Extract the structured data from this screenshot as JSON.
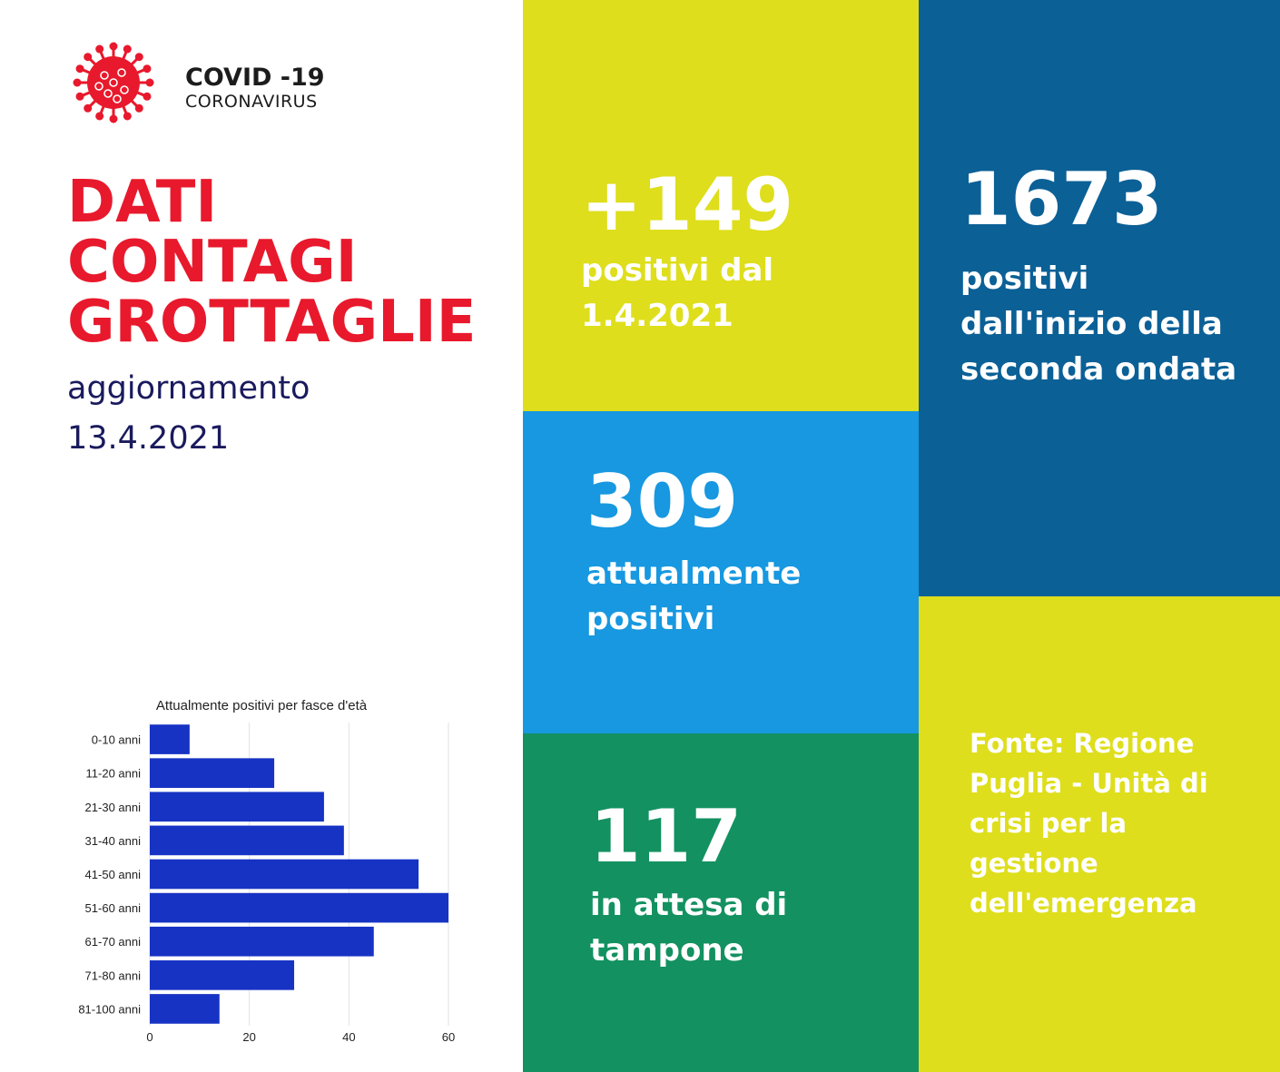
{
  "logo": {
    "title": "COVID -19",
    "subtitle": "CORONAVIRUS",
    "icon": "virus-icon"
  },
  "heading": {
    "line1": "DATI",
    "line2": "CONTAGI",
    "line3": "GROTTAGLIE"
  },
  "update": {
    "label": "aggiornamento",
    "date": "13.4.2021"
  },
  "colors": {
    "red": "#e8192c",
    "yellow": "#dede1c",
    "lightblue": "#1798e0",
    "darkblue": "#0b6096",
    "green": "#139161",
    "bar": "#1733c4"
  },
  "tiles": {
    "new_positives": {
      "value": "+149",
      "line1": "positivi dal",
      "line2": "1.4.2021"
    },
    "total_positives": {
      "value": "1673",
      "line1": "positivi",
      "line2": "dall'inizio della",
      "line3": "seconda ondata"
    },
    "current_positives": {
      "value": "309",
      "line1": "attualmente",
      "line2": "positivi"
    },
    "awaiting_swab": {
      "value": "117",
      "line1": "in attesa di",
      "line2": "tampone"
    },
    "source": {
      "line1": "Fonte: Regione",
      "line2": "Puglia - Unità di",
      "line3": "crisi per la",
      "line4": "gestione",
      "line5": "dell'emergenza"
    }
  },
  "chart_data": {
    "type": "bar",
    "orientation": "horizontal",
    "title": "Attualmente positivi per fasce d'età",
    "categories": [
      "0-10 anni",
      "11-20 anni",
      "21-30 anni",
      "31-40 anni",
      "41-50 anni",
      "51-60 anni",
      "61-70 anni",
      "71-80 anni",
      "81-100 anni"
    ],
    "values": [
      8,
      25,
      35,
      39,
      54,
      60,
      45,
      29,
      14
    ],
    "xlim": [
      0,
      60
    ],
    "xticks": [
      "0",
      "20",
      "40",
      "60"
    ],
    "grid": true,
    "color": "#1733c4"
  }
}
